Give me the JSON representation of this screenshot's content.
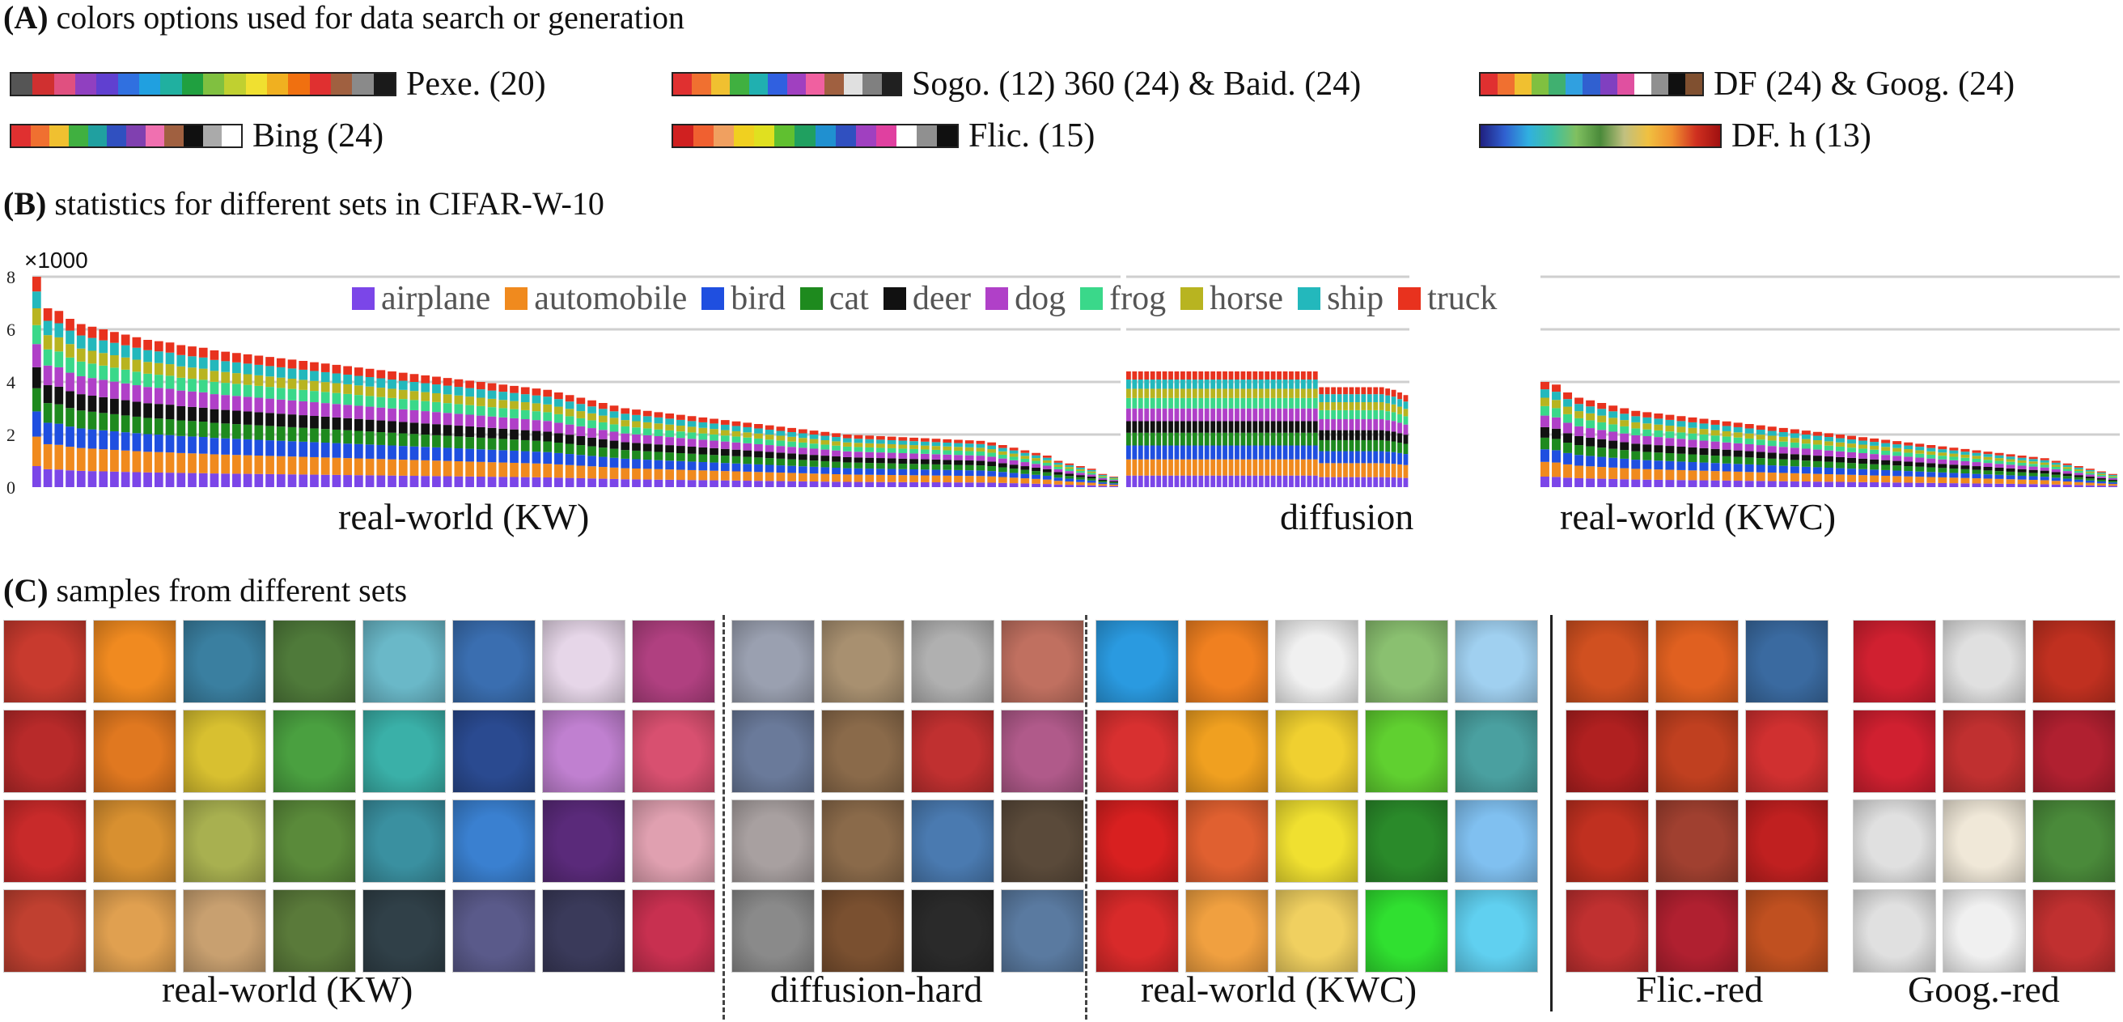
{
  "section_a": {
    "label": "(A)",
    "title": "colors options used for data search or generation",
    "palettes": [
      {
        "label": "Pexe. (20)",
        "colors": [
          "#555555",
          "#d03030",
          "#e05080",
          "#9040c0",
          "#6040d0",
          "#3070e0",
          "#20a0e0",
          "#20b0a0",
          "#20a040",
          "#80c040",
          "#c0d030",
          "#f0e030",
          "#f0b020",
          "#f07010",
          "#e03030",
          "#a06040",
          "#8a8a8a",
          "#1a1a1a"
        ]
      },
      {
        "label": "Sogo. (12) 360 (24) & Baid. (24)",
        "colors": [
          "#e03030",
          "#f07030",
          "#f0c030",
          "#40b040",
          "#20b0b0",
          "#3060e0",
          "#a040c0",
          "#f060a0",
          "#a06040",
          "#e0e0e0",
          "#808080",
          "#202020"
        ]
      },
      {
        "label": "DF (24) & Goog. (24)",
        "colors": [
          "#e03030",
          "#f07030",
          "#f0c030",
          "#80c040",
          "#40b070",
          "#30a0e0",
          "#3060d0",
          "#8040c0",
          "#e050a0",
          "#ffffff",
          "#909090",
          "#101010",
          "#805030"
        ]
      },
      {
        "label": "Bing (24)",
        "colors": [
          "#e03030",
          "#f07030",
          "#f0c030",
          "#40b040",
          "#20a0a0",
          "#3050c0",
          "#8040b0",
          "#f070b0",
          "#a06040",
          "#101010",
          "#aaaaaa",
          "#ffffff"
        ]
      },
      {
        "label": "Flic. (15)",
        "colors": [
          "#d02020",
          "#f06030",
          "#f0a060",
          "#f0d020",
          "#e0e020",
          "#60c030",
          "#20a060",
          "#2090d0",
          "#3050c0",
          "#a040c0",
          "#e040a0",
          "#ffffff",
          "#909090",
          "#101010"
        ]
      },
      {
        "label": "DF. h (13)",
        "colors": [
          "#202080",
          "#3060d0",
          "#30b0e0",
          "#40c0a0",
          "#80c060",
          "#4a8a3a",
          "#c0c080",
          "#f0c040",
          "#f09030",
          "#d03020",
          "#a01010"
        ]
      }
    ]
  },
  "section_b": {
    "label": "(B)",
    "title": "statistics for different sets in CIFAR-W-10",
    "axis_multiplier": "×1000",
    "legend": [
      {
        "name": "airplane",
        "color": "#7b46e8"
      },
      {
        "name": "automobile",
        "color": "#f08a1e"
      },
      {
        "name": "bird",
        "color": "#1f4fe0"
      },
      {
        "name": "cat",
        "color": "#1e8a1e"
      },
      {
        "name": "deer",
        "color": "#111111"
      },
      {
        "name": "dog",
        "color": "#b040c8"
      },
      {
        "name": "frog",
        "color": "#3ad88a"
      },
      {
        "name": "horse",
        "color": "#b8b420"
      },
      {
        "name": "ship",
        "color": "#23b8bc"
      },
      {
        "name": "truck",
        "color": "#e8321e"
      }
    ],
    "group_labels": [
      "real-world (KW)",
      "diffusion",
      "real-world (KWC)"
    ]
  },
  "chart_data": {
    "type": "bar",
    "stacked": true,
    "title": "statistics for different sets in CIFAR-W-10",
    "ylabel": "×1000",
    "ylim": [
      0,
      8
    ],
    "yticks": [
      0,
      2,
      4,
      6,
      8
    ],
    "groups": [
      {
        "name": "real-world (KW)",
        "bar_totals": [
          8.0,
          6.8,
          6.7,
          6.4,
          6.2,
          6.1,
          6.0,
          5.9,
          5.8,
          5.7,
          5.6,
          5.55,
          5.5,
          5.4,
          5.35,
          5.3,
          5.2,
          5.15,
          5.1,
          5.05,
          5.0,
          4.95,
          4.9,
          4.85,
          4.8,
          4.75,
          4.7,
          4.65,
          4.6,
          4.55,
          4.5,
          4.45,
          4.4,
          4.35,
          4.3,
          4.25,
          4.2,
          4.15,
          4.1,
          4.05,
          4.0,
          3.95,
          3.9,
          3.85,
          3.8,
          3.75,
          3.7,
          3.6,
          3.5,
          3.4,
          3.3,
          3.2,
          3.1,
          3.0,
          2.95,
          2.9,
          2.85,
          2.8,
          2.75,
          2.7,
          2.65,
          2.6,
          2.55,
          2.5,
          2.45,
          2.4,
          2.35,
          2.3,
          2.25,
          2.2,
          2.15,
          2.1,
          2.05,
          2.0,
          1.98,
          1.96,
          1.94,
          1.92,
          1.9,
          1.88,
          1.86,
          1.84,
          1.82,
          1.8,
          1.78,
          1.76,
          1.7,
          1.6,
          1.5,
          1.4,
          1.3,
          1.2,
          1.0,
          0.9,
          0.8,
          0.7,
          0.5,
          0.4
        ]
      },
      {
        "name": "diffusion",
        "bar_totals": [
          4.4,
          4.4,
          4.4,
          4.4,
          4.4,
          4.4,
          4.4,
          4.4,
          4.4,
          4.4,
          4.4,
          4.4,
          4.4,
          4.4,
          4.4,
          4.4,
          4.4,
          4.4,
          4.4,
          4.4,
          4.4,
          4.4,
          4.4,
          4.4,
          4.4,
          4.4,
          4.4,
          4.4,
          4.4,
          4.4,
          4.4,
          4.4,
          3.8,
          3.8,
          3.8,
          3.8,
          3.8,
          3.8,
          3.8,
          3.8,
          3.8,
          3.8,
          3.8,
          3.75,
          3.7,
          3.6,
          3.5
        ]
      },
      {
        "name": "real-world (KWC)",
        "bar_totals": [
          4.0,
          3.9,
          3.6,
          3.4,
          3.3,
          3.2,
          3.1,
          3.0,
          2.9,
          2.85,
          2.8,
          2.75,
          2.7,
          2.65,
          2.6,
          2.55,
          2.5,
          2.45,
          2.4,
          2.35,
          2.3,
          2.25,
          2.2,
          2.15,
          2.1,
          2.05,
          2.0,
          1.95,
          1.9,
          1.85,
          1.8,
          1.75,
          1.7,
          1.65,
          1.6,
          1.55,
          1.5,
          1.45,
          1.4,
          1.35,
          1.3,
          1.25,
          1.2,
          1.15,
          1.1,
          1.0,
          0.9,
          0.8,
          0.7,
          0.6,
          0.5
        ]
      }
    ],
    "series": [
      "airplane",
      "automobile",
      "bird",
      "cat",
      "deer",
      "dog",
      "frog",
      "horse",
      "ship",
      "truck"
    ]
  },
  "section_c": {
    "label": "(C)",
    "title": "samples from different sets",
    "groups": [
      {
        "label": "real-world (KW)",
        "cols": 8,
        "rows": 4,
        "tiles": [
          "#c83a2e",
          "#f08a20",
          "#3a7fa0",
          "#4f7a3a",
          "#6ab8c8",
          "#3a6eb0",
          "#e6d6e8",
          "#b04080",
          "#b82a2a",
          "#e07820",
          "#d8c030",
          "#4aa040",
          "#3ab0a8",
          "#2a4a90",
          "#c080d0",
          "#d85070",
          "#c82a2a",
          "#d89030",
          "#a8b050",
          "#5a8a3a",
          "#3a90a0",
          "#3a80d0",
          "#5a2a7a",
          "#e0a0b0",
          "#c04030",
          "#e0a050",
          "#c8a070",
          "#5a7a3a",
          "#304048",
          "#5a5a8a",
          "#3a3a5a",
          "#c83050"
        ]
      },
      {
        "label": "diffusion-hard",
        "cols": 4,
        "rows": 4,
        "tiles": [
          "#9aa0b0",
          "#a89070",
          "#b0b0b0",
          "#c07060",
          "#6a7a9a",
          "#8a6a4a",
          "#c03030",
          "#b05a8a",
          "#a8a0a0",
          "#8a6a4a",
          "#4a7ab0",
          "#5a4a3a",
          "#8a8a8a",
          "#7a5030",
          "#2a2a2a",
          "#5a7aa0"
        ]
      },
      {
        "label": "real-world (KWC)",
        "cols": 5,
        "rows": 4,
        "tiles": [
          "#2a9ae0",
          "#f08020",
          "#f0f0f0",
          "#8ac070",
          "#a0d0f0",
          "#d83030",
          "#f0a020",
          "#f0d030",
          "#60d030",
          "#4aa0a0",
          "#d82020",
          "#e06030",
          "#f0e030",
          "#2a8a2a",
          "#80c0f0",
          "#d82a2a",
          "#f0a040",
          "#f0d060",
          "#30e030",
          "#60d0f0"
        ]
      },
      {
        "label": "Flic.-red",
        "cols": 3,
        "rows": 4,
        "tiles": [
          "#d05020",
          "#e06020",
          "#3a6aa0",
          "#b02020",
          "#c04020",
          "#d03030",
          "#c03020",
          "#a04030",
          "#c02020",
          "#c03030",
          "#b02030",
          "#c05020"
        ]
      },
      {
        "label": "Goog.-red",
        "cols": 3,
        "rows": 4,
        "tiles": [
          "#d02030",
          "#e0e0e0",
          "#c03020",
          "#d02030",
          "#c03030",
          "#b02030",
          "#e0e0e0",
          "#f0e8d8",
          "#4a8a3a",
          "#e0e0e0",
          "#f0f0f0",
          "#c03030"
        ]
      }
    ]
  }
}
